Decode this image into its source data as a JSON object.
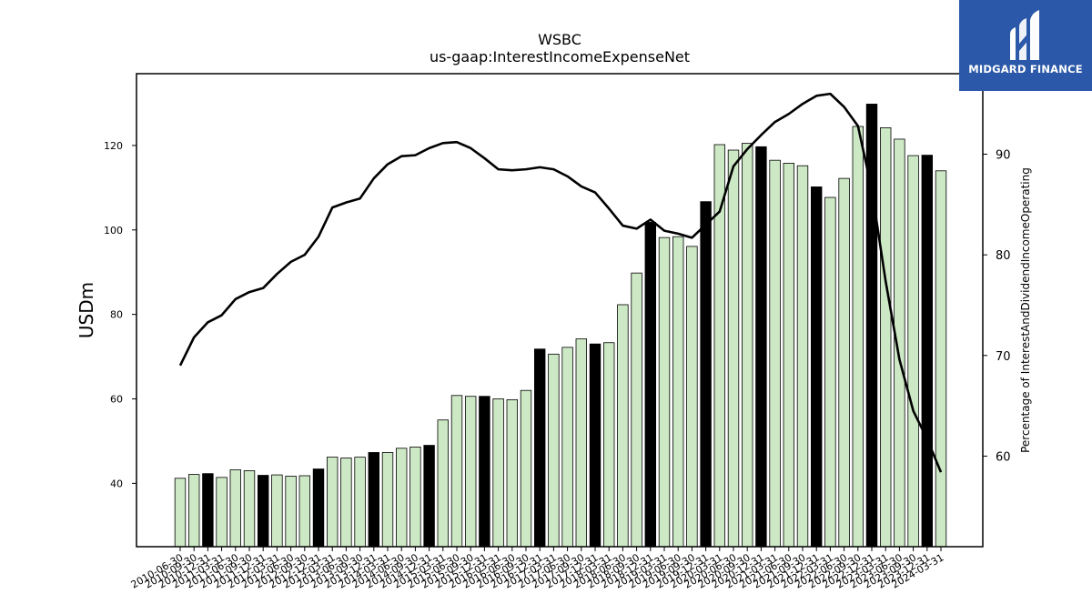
{
  "chart_data": {
    "type": "bar",
    "title": "WSBC",
    "subtitle": "us-gaap:InterestIncomeExpenseNet",
    "ylabel": "USDm",
    "y2label": "Percentage of InterestAndDividendIncomeOperating",
    "ylim": [
      25,
      137
    ],
    "y2lim": [
      51,
      98
    ],
    "yticks": [
      40,
      60,
      80,
      100,
      120
    ],
    "y2ticks": [
      60,
      70,
      80,
      90
    ],
    "grid": false,
    "categories": [
      "2010-06-30",
      "2010-09-30",
      "2010-12-31",
      "2011-03-31",
      "2011-06-30",
      "2011-09-30",
      "2011-12-31",
      "2012-03-31",
      "2012-06-30",
      "2012-09-30",
      "2012-12-31",
      "2013-03-31",
      "2013-06-30",
      "2013-09-30",
      "2013-12-31",
      "2014-03-31",
      "2014-06-30",
      "2014-09-30",
      "2014-12-31",
      "2015-03-31",
      "2015-06-30",
      "2015-09-30",
      "2015-12-31",
      "2016-03-31",
      "2016-06-30",
      "2016-09-30",
      "2016-12-31",
      "2017-03-31",
      "2017-06-30",
      "2017-09-30",
      "2017-12-31",
      "2018-03-31",
      "2018-06-30",
      "2018-09-30",
      "2018-12-31",
      "2019-03-31",
      "2019-06-30",
      "2019-09-30",
      "2019-12-31",
      "2020-03-31",
      "2020-06-30",
      "2020-09-30",
      "2020-12-31",
      "2021-03-31",
      "2021-06-30",
      "2021-09-30",
      "2021-12-31",
      "2022-03-31",
      "2022-06-30",
      "2022-09-30",
      "2022-12-31",
      "2023-03-31",
      "2023-06-30",
      "2023-09-30",
      "2023-12-31",
      "2024-03-31"
    ],
    "series": [
      {
        "type": "bar",
        "values": [
          41.2,
          42.1,
          42.3,
          41.4,
          43.2,
          43.0,
          41.9,
          42.0,
          41.7,
          41.8,
          43.4,
          46.2,
          46.0,
          46.2,
          47.3,
          47.3,
          48.3,
          48.6,
          49.0,
          55.0,
          60.8,
          60.6,
          60.6,
          60.0,
          59.8,
          62.0,
          71.8,
          70.6,
          72.2,
          74.2,
          73.0,
          73.3,
          82.3,
          89.8,
          101.8,
          98.2,
          98.4,
          96.1,
          106.7,
          120.2,
          118.9,
          120.5,
          119.7,
          116.5,
          115.8,
          115.2,
          110.2,
          107.7,
          112.2,
          124.5,
          129.8,
          124.2,
          121.5,
          117.6,
          117.7,
          114.0
        ],
        "highlight": [
          false,
          false,
          true,
          false,
          false,
          false,
          true,
          false,
          false,
          false,
          true,
          false,
          false,
          false,
          true,
          false,
          false,
          false,
          true,
          false,
          false,
          false,
          true,
          false,
          false,
          false,
          true,
          false,
          false,
          false,
          true,
          false,
          false,
          false,
          true,
          false,
          false,
          false,
          true,
          false,
          false,
          false,
          true,
          false,
          false,
          false,
          true,
          false,
          false,
          false,
          true,
          false,
          false,
          false,
          true,
          false
        ],
        "color": "#cde8c5",
        "highlight_color": "#000000"
      },
      {
        "type": "line",
        "axis": "right",
        "color": "#000000",
        "values": [
          69.0,
          71.8,
          73.3,
          74.0,
          75.6,
          76.3,
          76.7,
          78.1,
          79.3,
          80.0,
          81.8,
          84.7,
          85.2,
          85.6,
          87.6,
          89.0,
          89.8,
          89.9,
          90.6,
          91.1,
          91.2,
          90.6,
          89.6,
          88.5,
          88.4,
          88.5,
          88.7,
          88.5,
          87.8,
          86.8,
          86.2,
          84.6,
          82.9,
          82.6,
          83.5,
          82.4,
          82.1,
          81.7,
          83.0,
          84.3,
          88.8,
          90.5,
          91.9,
          93.2,
          94.0,
          95.0,
          95.8,
          96.0,
          94.7,
          92.8,
          86.5,
          77.4,
          69.6,
          64.5,
          61.7,
          58.4
        ]
      }
    ]
  },
  "logo": {
    "text": "MIDGARD FINANCE",
    "bg": "#2b58a8"
  }
}
